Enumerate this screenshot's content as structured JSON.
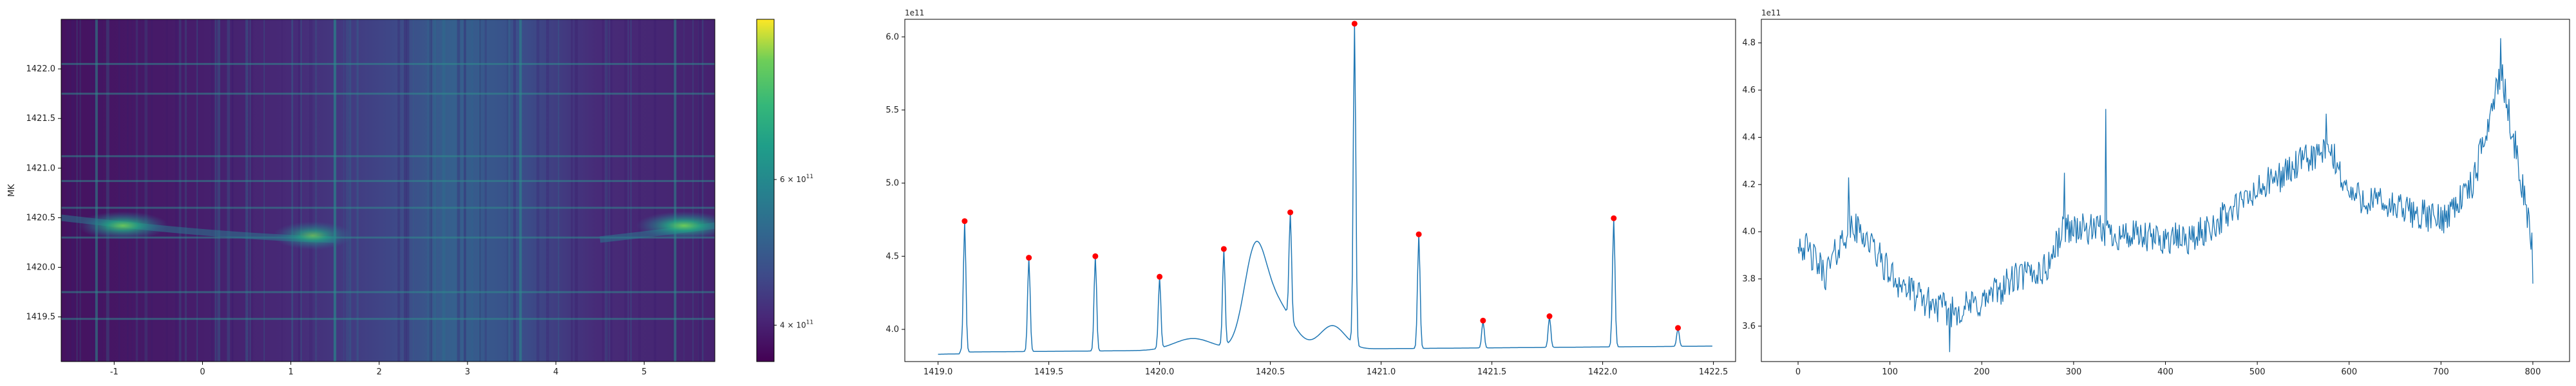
{
  "chart_data": [
    {
      "type": "heatmap",
      "xlabel": "",
      "ylabel": "MK",
      "xlim": [
        -1.6,
        5.8
      ],
      "ylim": [
        1419.05,
        1422.5
      ],
      "xticks": [
        "-1",
        "0",
        "1",
        "2",
        "3",
        "4",
        "5"
      ],
      "xtick_values": [
        -1,
        0,
        1,
        2,
        3,
        4,
        5
      ],
      "yticks": [
        "1419.5",
        "1420.0",
        "1420.5",
        "1421.0",
        "1421.5",
        "1422.0"
      ],
      "ytick_values": [
        1419.5,
        1420.0,
        1420.5,
        1421.0,
        1421.5,
        1422.0
      ],
      "colormap": "viridis",
      "colorbar": {
        "ticks": [
          "4 × 10",
          "6 × 10"
        ],
        "tick_exponent": "11",
        "tick_values": [
          400000000000.0,
          600000000000.0
        ],
        "range": [
          350000000000.0,
          820000000000.0
        ]
      },
      "blobs": [
        {
          "x": -0.9,
          "y": 1420.42,
          "intensity": 0.72
        },
        {
          "x": 1.25,
          "y": 1420.32,
          "intensity": 0.6
        },
        {
          "x": 5.45,
          "y": 1420.42,
          "intensity": 0.78
        }
      ],
      "bright_columns_x": [
        -1.2,
        1.5,
        3.6,
        5.35
      ],
      "bright_rows_y": [
        1419.48,
        1419.75,
        1420.3,
        1420.6,
        1420.87,
        1421.12,
        1421.75,
        1422.05
      ]
    },
    {
      "type": "line",
      "xlabel": "",
      "ylabel": "",
      "offset_label": "1e11",
      "xlim": [
        1418.85,
        1422.6
      ],
      "ylim": [
        3.78,
        6.12
      ],
      "xticks": [
        "1419.0",
        "1419.5",
        "1420.0",
        "1420.5",
        "1421.0",
        "1421.5",
        "1422.0",
        "1422.5"
      ],
      "xtick_values": [
        1419.0,
        1419.5,
        1420.0,
        1420.5,
        1421.0,
        1421.5,
        1422.0,
        1422.5
      ],
      "yticks": [
        "4.0",
        "4.5",
        "5.0",
        "5.5",
        "6.0"
      ],
      "ytick_values": [
        4.0,
        4.5,
        5.0,
        5.5,
        6.0
      ],
      "line_color": "#1f77b4",
      "marker_color": "#ff0000",
      "peaks": [
        {
          "x": 1419.12,
          "y": 4.74
        },
        {
          "x": 1419.41,
          "y": 4.49
        },
        {
          "x": 1419.71,
          "y": 4.5
        },
        {
          "x": 1420.0,
          "y": 4.36
        },
        {
          "x": 1420.29,
          "y": 4.55
        },
        {
          "x": 1420.59,
          "y": 4.8
        },
        {
          "x": 1420.88,
          "y": 6.09
        },
        {
          "x": 1421.17,
          "y": 4.65
        },
        {
          "x": 1421.46,
          "y": 4.06
        },
        {
          "x": 1421.76,
          "y": 4.09
        },
        {
          "x": 1422.05,
          "y": 4.76
        },
        {
          "x": 1422.34,
          "y": 4.01
        }
      ]
    },
    {
      "type": "line",
      "xlabel": "",
      "ylabel": "",
      "offset_label": "1e11",
      "xlim": [
        -40,
        840
      ],
      "ylim": [
        3.45,
        4.9
      ],
      "xticks": [
        "0",
        "100",
        "200",
        "300",
        "400",
        "500",
        "600",
        "700",
        "800"
      ],
      "xtick_values": [
        0,
        100,
        200,
        300,
        400,
        500,
        600,
        700,
        800
      ],
      "yticks": [
        "3.6",
        "3.8",
        "4.0",
        "4.2",
        "4.4",
        "4.6",
        "4.8"
      ],
      "ytick_values": [
        3.6,
        3.8,
        4.0,
        4.2,
        4.4,
        4.6,
        4.8
      ],
      "line_color": "#1f77b4",
      "trend": [
        [
          0,
          3.97
        ],
        [
          30,
          3.82
        ],
        [
          55,
          4.02
        ],
        [
          70,
          4.0
        ],
        [
          100,
          3.82
        ],
        [
          130,
          3.72
        ],
        [
          165,
          3.66
        ],
        [
          200,
          3.7
        ],
        [
          235,
          3.8
        ],
        [
          270,
          3.84
        ],
        [
          290,
          4.02
        ],
        [
          330,
          4.0
        ],
        [
          380,
          3.97
        ],
        [
          430,
          3.97
        ],
        [
          470,
          4.08
        ],
        [
          510,
          4.2
        ],
        [
          560,
          4.32
        ],
        [
          580,
          4.34
        ],
        [
          600,
          4.16
        ],
        [
          650,
          4.1
        ],
        [
          700,
          4.05
        ],
        [
          735,
          4.2
        ],
        [
          755,
          4.52
        ],
        [
          765,
          4.68
        ],
        [
          780,
          4.38
        ],
        [
          800,
          3.94
        ]
      ],
      "noise_amplitude": 0.07,
      "spikes": [
        {
          "x": 55,
          "y": 4.23
        },
        {
          "x": 165,
          "y": 3.49
        },
        {
          "x": 290,
          "y": 4.25
        },
        {
          "x": 335,
          "y": 4.52
        },
        {
          "x": 575,
          "y": 4.5
        },
        {
          "x": 765,
          "y": 4.82
        },
        {
          "x": 800,
          "y": 3.78
        }
      ]
    }
  ]
}
